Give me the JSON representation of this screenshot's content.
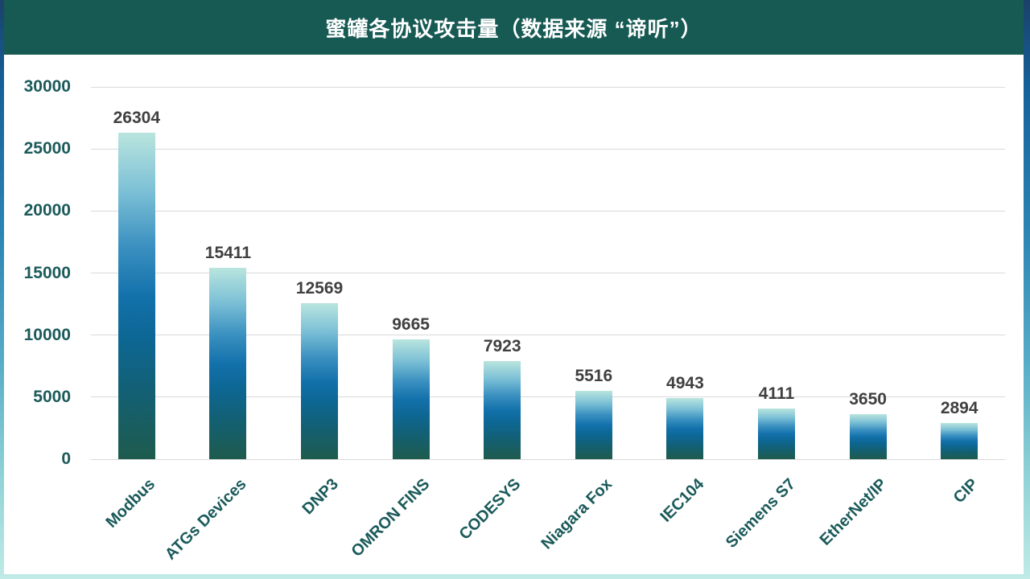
{
  "title": "蜜罐各协议攻击量（数据来源 “谛听”）",
  "colors": {
    "header_bg": "#175a54",
    "axis_label": "#1b5a5a",
    "data_label": "#404040",
    "gridline": "#d9d9d9",
    "plot_bg": "#ffffff",
    "bar_gradient_stops": [
      "#b9e5de",
      "#7cc0d6",
      "#3a90c0",
      "#1371ab",
      "#0d6794",
      "#126076",
      "#1e5b4d"
    ],
    "frame_gradient_stops": [
      "#1a4169",
      "#15609a",
      "#2b84b3",
      "#55abc7",
      "#8fd2d6",
      "#c0ebe7"
    ]
  },
  "chart_data": {
    "type": "bar",
    "title": "蜜罐各协议攻击量（数据来源 “谛听”）",
    "categories": [
      "Modbus",
      "ATGs Devices",
      "DNP3",
      "OMRON FINS",
      "CODESYS",
      "Niagara Fox",
      "IEC104",
      "Siemens S7",
      "EtherNet/IP",
      "CIP"
    ],
    "values": [
      26304,
      15411,
      12569,
      9665,
      7923,
      5516,
      4943,
      4111,
      3650,
      2894
    ],
    "data_labels": true,
    "xlabel": "",
    "ylabel": "",
    "ylim": [
      0,
      30000
    ],
    "yticks": [
      0,
      5000,
      10000,
      15000,
      20000,
      25000,
      30000
    ],
    "grid": true,
    "legend": false,
    "x_tick_rotation_deg": 45
  }
}
